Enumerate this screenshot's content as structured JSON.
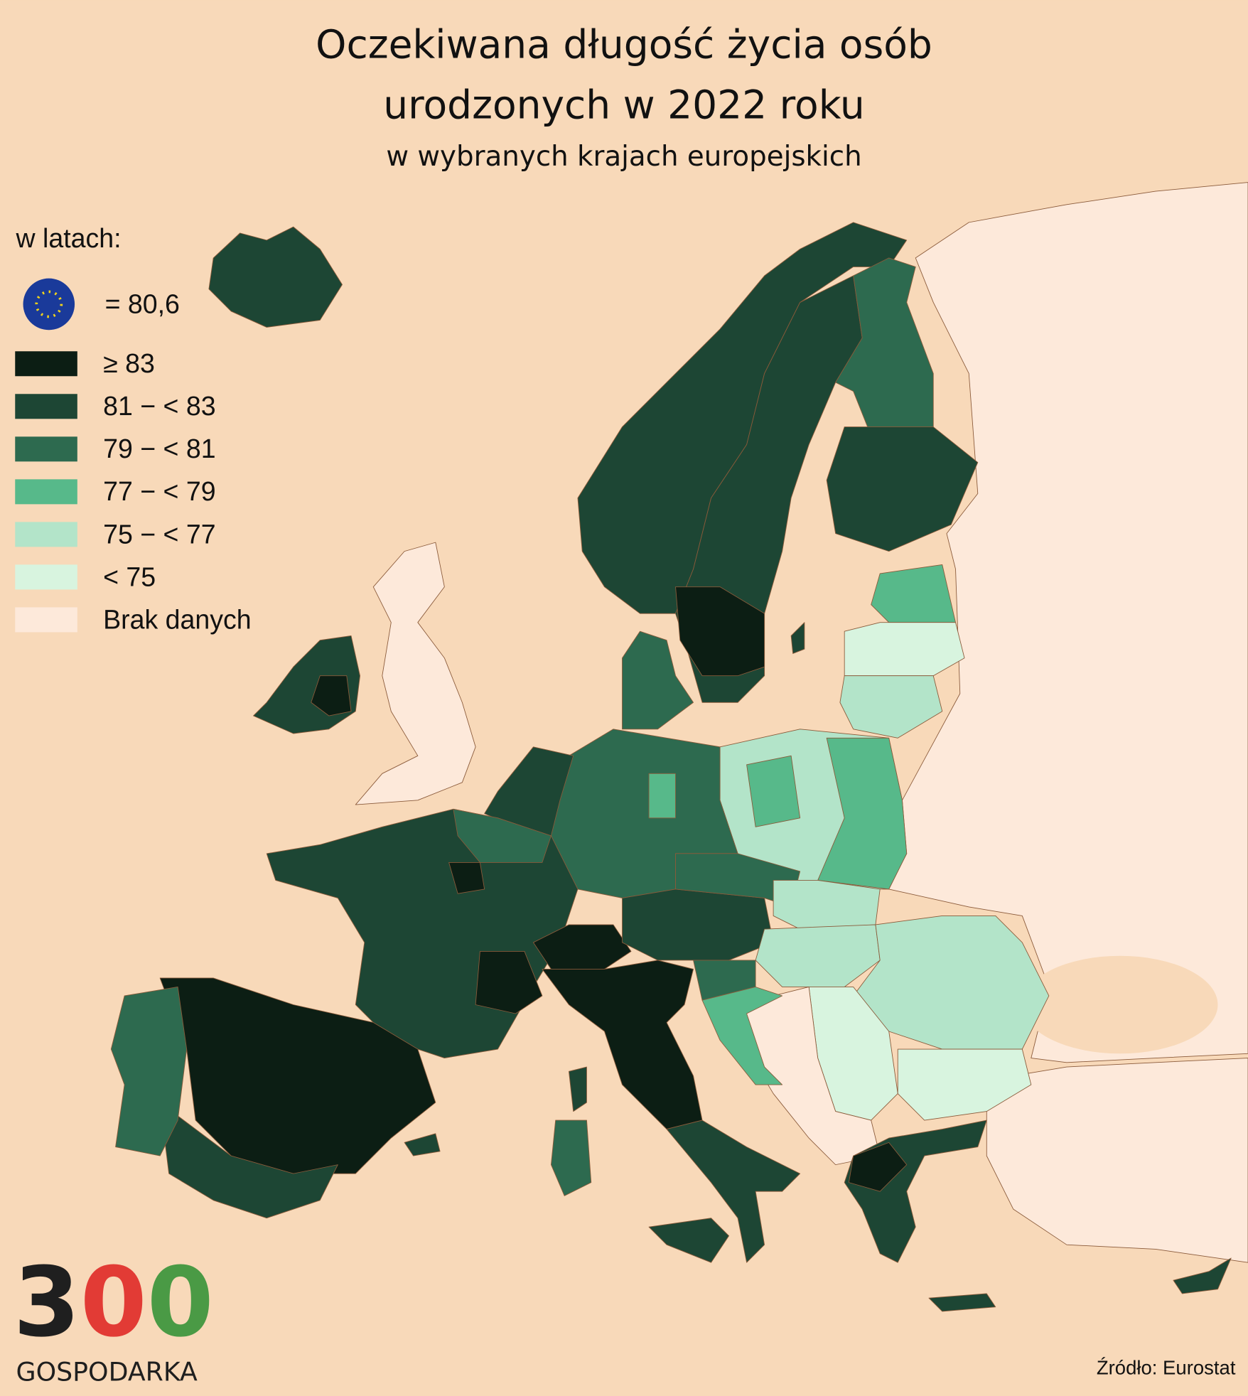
{
  "header": {
    "title_lines": [
      "Oczekiwana długość życia osób",
      "urodzonych w 2022 roku"
    ],
    "subtitle": "w wybranych krajach europejskich"
  },
  "legend": {
    "label": "w latach:",
    "eu_average": "= 80,6",
    "items": [
      {
        "label": "≥ 83",
        "color": "#0c1e14"
      },
      {
        "label": "81 − < 83",
        "color": "#1d4634"
      },
      {
        "label": "79 − < 81",
        "color": "#2d6a4f"
      },
      {
        "label": "77 − < 79",
        "color": "#57b98a"
      },
      {
        "label": "75 − < 77",
        "color": "#b3e4c9"
      },
      {
        "label": "< 75",
        "color": "#d8f4df"
      },
      {
        "label": "Brak danych",
        "color": "#fde9da"
      }
    ]
  },
  "logo": {
    "digits": [
      "3",
      "0",
      "0"
    ],
    "digit_colors": [
      "#1f1f1f",
      "#e23b35",
      "#4a9a45"
    ],
    "name": "GOSPODARKA"
  },
  "source": "Źródło: Eurostat"
}
